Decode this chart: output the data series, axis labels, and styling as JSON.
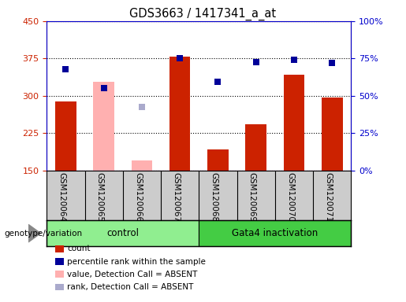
{
  "title": "GDS3663 / 1417341_a_at",
  "samples": [
    "GSM120064",
    "GSM120065",
    "GSM120066",
    "GSM120067",
    "GSM120068",
    "GSM120069",
    "GSM120070",
    "GSM120071"
  ],
  "count_values": [
    289,
    null,
    null,
    378,
    193,
    243,
    343,
    296
  ],
  "percentile_values": [
    354,
    null,
    null,
    375,
    328,
    368,
    372,
    366
  ],
  "absent_value_bars": [
    null,
    328,
    170,
    null,
    null,
    null,
    null,
    null
  ],
  "absent_rank_squares": [
    null,
    null,
    278,
    null,
    null,
    null,
    null,
    null
  ],
  "absent_percentile_squares": [
    null,
    315,
    null,
    null,
    null,
    null,
    null,
    null
  ],
  "ylim": [
    150,
    450
  ],
  "yticks": [
    150,
    225,
    300,
    375,
    450
  ],
  "y2_ticks": [
    0,
    25,
    50,
    75,
    100
  ],
  "y2_labels": [
    "0%",
    "25%",
    "50%",
    "75%",
    "100%"
  ],
  "left_axis_color": "#cc2200",
  "right_axis_color": "#0000cc",
  "bar_color_red": "#cc2200",
  "bar_color_pink": "#ffb0b0",
  "square_color_blue": "#000099",
  "square_color_lightblue": "#aaaacc",
  "control_color": "#90ee90",
  "gata4_color": "#44cc44",
  "group_labels": [
    "control",
    "Gata4 inactivation"
  ],
  "group_ranges": [
    [
      0,
      3
    ],
    [
      4,
      7
    ]
  ],
  "genotype_label": "genotype/variation",
  "legend_labels": [
    "count",
    "percentile rank within the sample",
    "value, Detection Call = ABSENT",
    "rank, Detection Call = ABSENT"
  ],
  "legend_colors": [
    "#cc2200",
    "#000099",
    "#ffb0b0",
    "#aaaacc"
  ]
}
